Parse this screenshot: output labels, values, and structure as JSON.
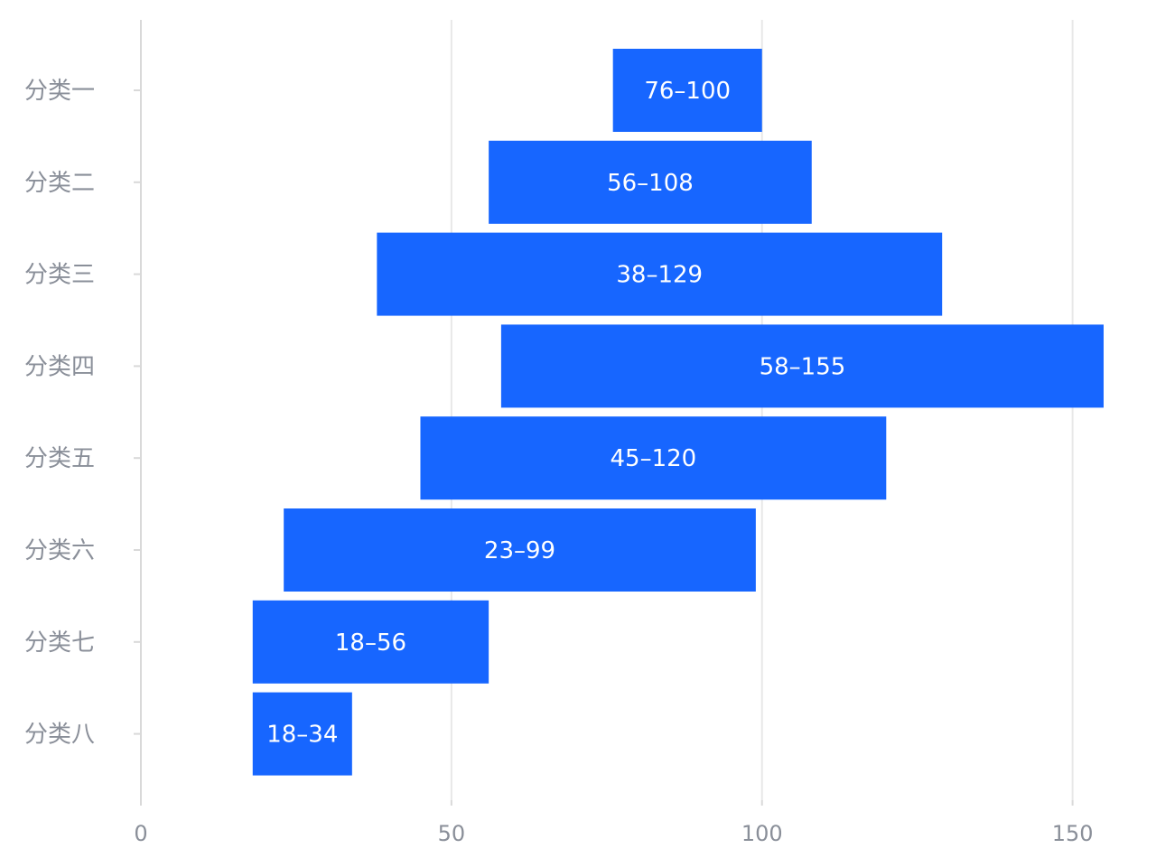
{
  "chart_data": {
    "type": "bar",
    "orientation": "horizontal",
    "categories": [
      "分类一",
      "分类二",
      "分类三",
      "分类四",
      "分类五",
      "分类六",
      "分类七",
      "分类八"
    ],
    "ranges": [
      [
        76,
        100
      ],
      [
        56,
        108
      ],
      [
        38,
        129
      ],
      [
        58,
        155
      ],
      [
        45,
        120
      ],
      [
        23,
        99
      ],
      [
        18,
        56
      ],
      [
        18,
        34
      ]
    ],
    "labels": [
      "76–100",
      "56–108",
      "38–129",
      "58–155",
      "45–120",
      "23–99",
      "18–56",
      "18–34"
    ],
    "xlim": [
      0,
      155
    ],
    "xticks": [
      0,
      50,
      100,
      150
    ],
    "tick_labels": [
      "0",
      "50",
      "100",
      "150"
    ],
    "grid": true,
    "colors": {
      "bar": "#1766ff",
      "grid": "#e8e8e8",
      "axis": "#d9d9d9",
      "text": "#8a8f99"
    }
  }
}
